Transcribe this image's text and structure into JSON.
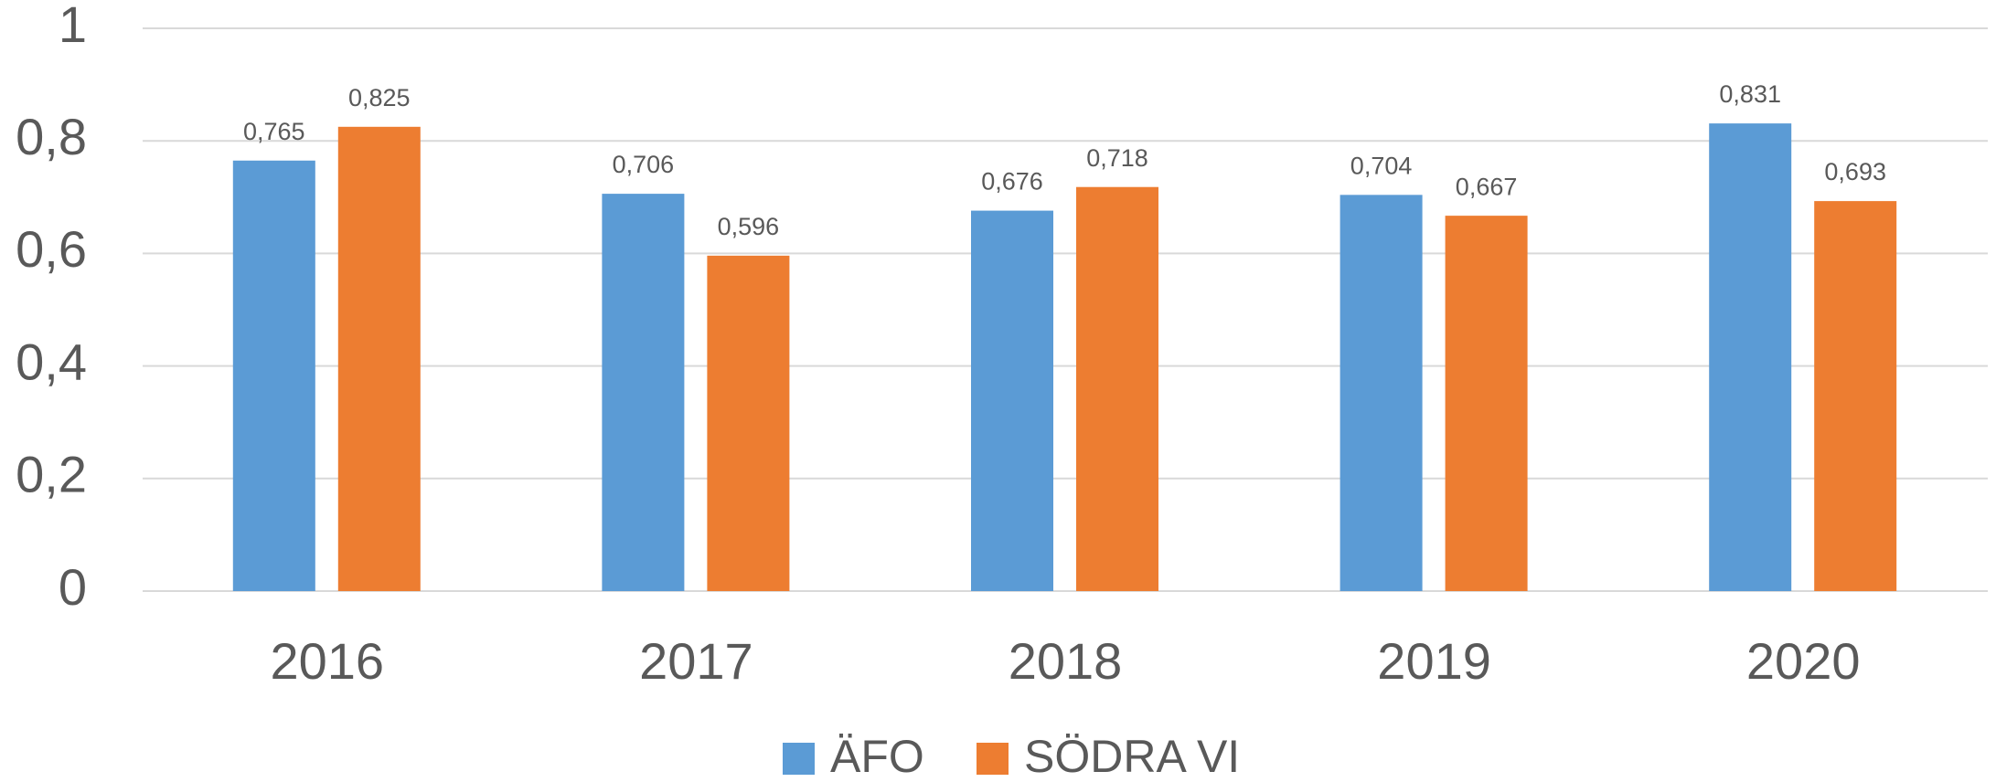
{
  "chart_data": {
    "type": "bar",
    "categories": [
      "2016",
      "2017",
      "2018",
      "2019",
      "2020"
    ],
    "series": [
      {
        "name": "ÄFO",
        "color": "#5b9bd5",
        "values": [
          0.765,
          0.706,
          0.676,
          0.704,
          0.831
        ],
        "value_labels": [
          "0,765",
          "0,706",
          "0,676",
          "0,704",
          "0,831"
        ]
      },
      {
        "name": "SÖDRA VI",
        "color": "#ed7d31",
        "values": [
          0.825,
          0.596,
          0.718,
          0.667,
          0.693
        ],
        "value_labels": [
          "0,825",
          "0,596",
          "0,718",
          "0,667",
          "0,693"
        ]
      }
    ],
    "ylim": [
      0,
      1
    ],
    "yticks": [
      0,
      {
        "value": 0.2,
        "label": "0,2"
      },
      {
        "value": 0.4,
        "label": "0,4"
      },
      {
        "value": 0.6,
        "label": "0,6"
      },
      {
        "value": 0.8,
        "label": "0,8"
      },
      1
    ],
    "grid": true,
    "legend": "bottom"
  }
}
